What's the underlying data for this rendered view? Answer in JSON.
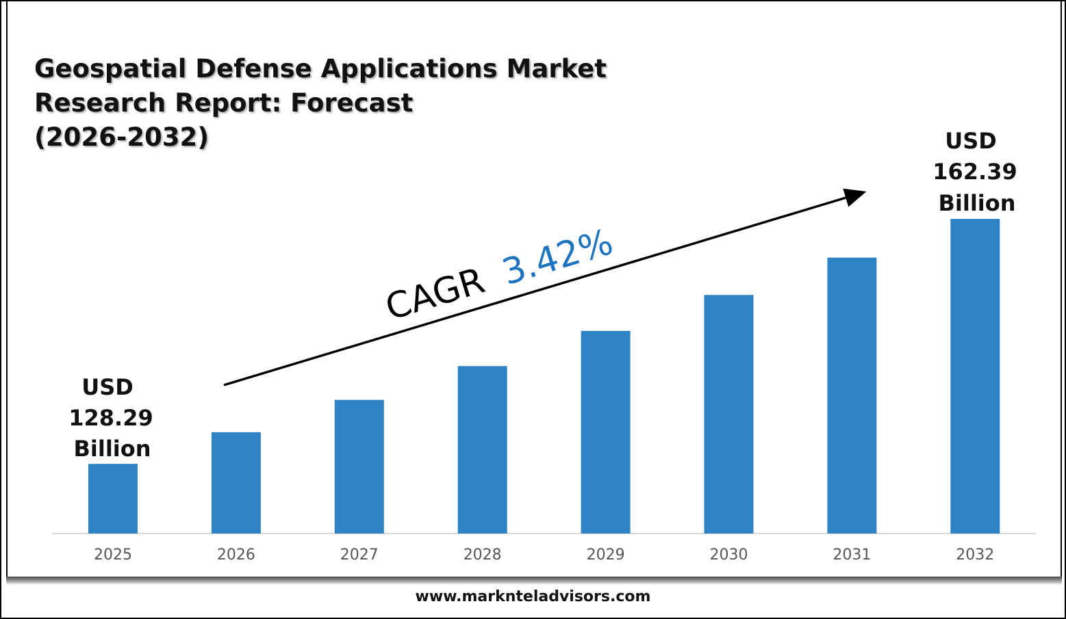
{
  "chart_data": {
    "type": "bar",
    "title": "Geospatial Defense Applications Market\nResearch Report: Forecast\n(2026-2032)",
    "categories": [
      "2025",
      "2026",
      "2027",
      "2028",
      "2029",
      "2030",
      "2031",
      "2032"
    ],
    "values": [
      128.29,
      132.7,
      137.2,
      141.9,
      146.8,
      151.8,
      157.0,
      162.39
    ],
    "ylim": [
      118.6,
      166
    ],
    "bar_color": "#2E83C4",
    "grid": false,
    "annotations": {
      "start_label": [
        "USD",
        "128.29",
        "Billion"
      ],
      "end_label": [
        "USD",
        "162.39",
        "Billion"
      ],
      "cagr_prefix": "CAGR",
      "cagr_value": "3.42%",
      "cagr_color": "#1F74C0"
    }
  },
  "footer": "www.marknteladvisors.com"
}
